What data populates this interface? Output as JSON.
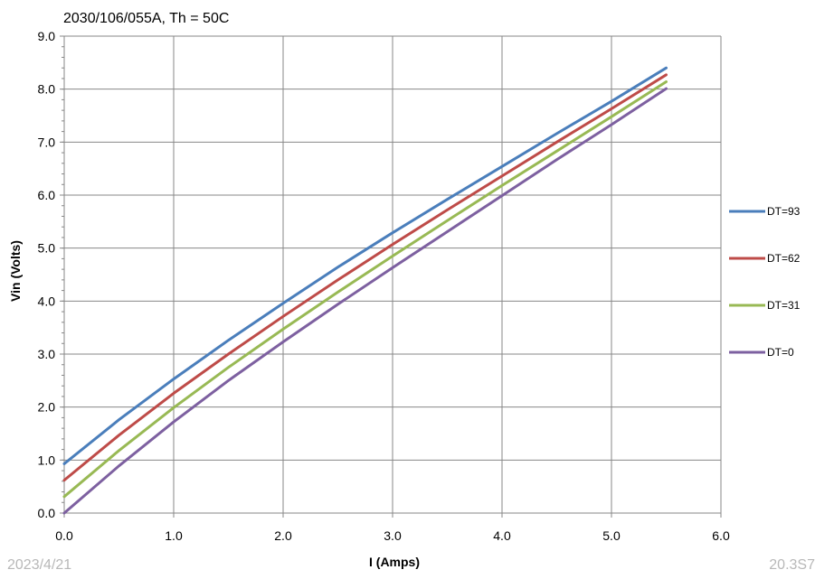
{
  "chart_data": {
    "type": "line",
    "title": "2030/106/055A, Th = 50C",
    "xlabel": "I (Amps)",
    "ylabel": "Vin (Volts)",
    "xlim": [
      0,
      6
    ],
    "ylim": [
      0,
      9
    ],
    "xticks": [
      "0.0",
      "1.0",
      "2.0",
      "3.0",
      "4.0",
      "5.0",
      "6.0"
    ],
    "yticks": [
      "0.0",
      "1.0",
      "2.0",
      "3.0",
      "4.0",
      "5.0",
      "6.0",
      "7.0",
      "8.0",
      "9.0"
    ],
    "grid": true,
    "legend_position": "right",
    "x": [
      0,
      0.5,
      1.0,
      1.5,
      2.0,
      2.5,
      3.0,
      3.5,
      4.0,
      4.5,
      5.0,
      5.5
    ],
    "series": [
      {
        "name": "DT=93",
        "color": "#4a7ebb",
        "values": [
          0.93,
          1.76,
          2.53,
          3.26,
          3.96,
          4.64,
          5.29,
          5.92,
          6.54,
          7.16,
          7.77,
          8.4
        ]
      },
      {
        "name": "DT=62",
        "color": "#be4b48",
        "values": [
          0.62,
          1.47,
          2.26,
          3.0,
          3.71,
          4.4,
          5.07,
          5.72,
          6.36,
          7.0,
          7.63,
          8.27
        ]
      },
      {
        "name": "DT=31",
        "color": "#98b954",
        "values": [
          0.31,
          1.18,
          1.99,
          2.75,
          3.47,
          4.17,
          4.85,
          5.52,
          6.18,
          6.83,
          7.48,
          8.14
        ]
      },
      {
        "name": "DT=0",
        "color": "#7d60a0",
        "values": [
          0.0,
          0.89,
          1.72,
          2.5,
          3.23,
          3.94,
          4.63,
          5.31,
          5.99,
          6.67,
          7.33,
          8.01
        ]
      }
    ]
  },
  "footer": {
    "date": "2023/4/21",
    "page": "20.3S7"
  }
}
